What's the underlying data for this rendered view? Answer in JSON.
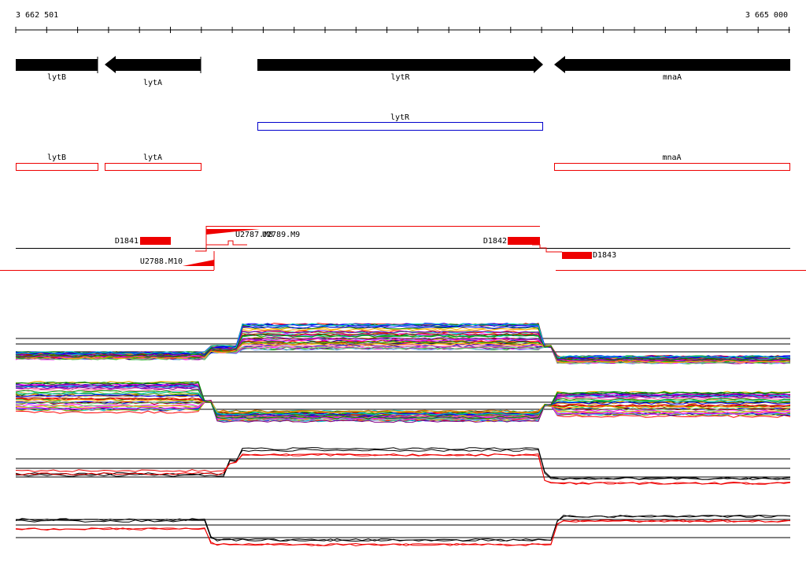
{
  "ruler": {
    "start": "3 662 501",
    "end": "3 665 000"
  },
  "genes": [
    {
      "label": "lytB"
    },
    {
      "label": "lytA"
    },
    {
      "label": "lytR"
    },
    {
      "label": "mnaA"
    }
  ],
  "transcripts": [
    {
      "label": "lytR"
    }
  ],
  "cds": [
    {
      "label": "lytB"
    },
    {
      "label": "lytA"
    },
    {
      "label": "mnaA"
    }
  ],
  "features": [
    {
      "label": "D1841"
    },
    {
      "label": "U2787.M8"
    },
    {
      "label": "U2789.M9"
    },
    {
      "label": "D1842"
    },
    {
      "label": "U2788.M10"
    },
    {
      "label": "D1843"
    }
  ]
}
